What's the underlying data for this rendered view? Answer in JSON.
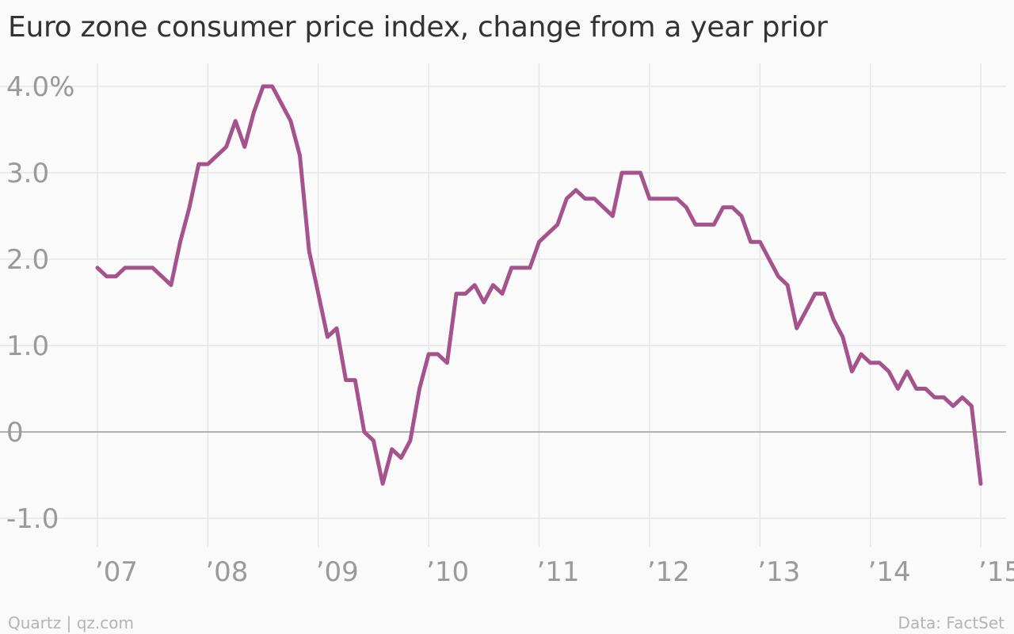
{
  "title": "Euro zone consumer price index, change from a year prior",
  "footer": {
    "source_left": "Quartz | qz.com",
    "source_right": "Data: FactSet"
  },
  "colors": {
    "line": "#a5538c",
    "grid": "#e6e6e6",
    "zero": "#999999",
    "tick_text": "#9a9a9a",
    "background": "#fafafa"
  },
  "chart_data": {
    "type": "line",
    "title": "Euro zone consumer price index, change from a year prior",
    "xlabel": "",
    "ylabel": "",
    "ylim": [
      -1.2,
      4.2
    ],
    "xlim": [
      2007.0,
      2015.1
    ],
    "grid": true,
    "legend": "none",
    "y_ticks": [
      4.0,
      3.0,
      2.0,
      1.0,
      0,
      -1.0
    ],
    "y_tick_labels": [
      "4.0%",
      "3.0",
      "2.0",
      "1.0",
      "0",
      "-1.0"
    ],
    "x_ticks": [
      2007,
      2008,
      2009,
      2010,
      2011,
      2012,
      2013,
      2014,
      2015
    ],
    "x_tick_labels": [
      "’07",
      "’08",
      "’09",
      "’10",
      "’11",
      "’12",
      "’13",
      "’14",
      "’15"
    ],
    "series": [
      {
        "x": [
          "2007-01",
          "2007-02",
          "2007-03",
          "2007-04",
          "2007-05",
          "2007-06",
          "2007-07",
          "2007-08",
          "2007-09",
          "2007-10",
          "2007-11",
          "2007-12",
          "2008-01",
          "2008-02",
          "2008-03",
          "2008-04",
          "2008-05",
          "2008-06",
          "2008-07",
          "2008-08",
          "2008-09",
          "2008-10",
          "2008-11",
          "2008-12",
          "2009-01",
          "2009-02",
          "2009-03",
          "2009-04",
          "2009-05",
          "2009-06",
          "2009-07",
          "2009-08",
          "2009-09",
          "2009-10",
          "2009-11",
          "2009-12",
          "2010-01",
          "2010-02",
          "2010-03",
          "2010-04",
          "2010-05",
          "2010-06",
          "2010-07",
          "2010-08",
          "2010-09",
          "2010-10",
          "2010-11",
          "2010-12",
          "2011-01",
          "2011-02",
          "2011-03",
          "2011-04",
          "2011-05",
          "2011-06",
          "2011-07",
          "2011-08",
          "2011-09",
          "2011-10",
          "2011-11",
          "2011-12",
          "2012-01",
          "2012-02",
          "2012-03",
          "2012-04",
          "2012-05",
          "2012-06",
          "2012-07",
          "2012-08",
          "2012-09",
          "2012-10",
          "2012-11",
          "2012-12",
          "2013-01",
          "2013-02",
          "2013-03",
          "2013-04",
          "2013-05",
          "2013-06",
          "2013-07",
          "2013-08",
          "2013-09",
          "2013-10",
          "2013-11",
          "2013-12",
          "2014-01",
          "2014-02",
          "2014-03",
          "2014-04",
          "2014-05",
          "2014-06",
          "2014-07",
          "2014-08",
          "2014-09",
          "2014-10",
          "2014-11",
          "2014-12",
          "2015-01"
        ],
        "values": [
          1.9,
          1.8,
          1.8,
          1.9,
          1.9,
          1.9,
          1.9,
          1.8,
          1.7,
          2.2,
          2.6,
          3.1,
          3.1,
          3.2,
          3.3,
          3.6,
          3.3,
          3.7,
          4.0,
          4.0,
          3.8,
          3.6,
          3.2,
          2.1,
          1.6,
          1.1,
          1.2,
          0.6,
          0.6,
          0.0,
          -0.1,
          -0.6,
          -0.2,
          -0.3,
          -0.1,
          0.5,
          0.9,
          0.9,
          0.8,
          1.6,
          1.6,
          1.7,
          1.5,
          1.7,
          1.6,
          1.9,
          1.9,
          1.9,
          2.2,
          2.3,
          2.4,
          2.7,
          2.8,
          2.7,
          2.7,
          2.6,
          2.5,
          3.0,
          3.0,
          3.0,
          2.7,
          2.7,
          2.7,
          2.7,
          2.6,
          2.4,
          2.4,
          2.4,
          2.6,
          2.6,
          2.5,
          2.2,
          2.2,
          2.0,
          1.8,
          1.7,
          1.2,
          1.4,
          1.6,
          1.6,
          1.3,
          1.1,
          0.7,
          0.9,
          0.8,
          0.8,
          0.7,
          0.5,
          0.7,
          0.5,
          0.5,
          0.4,
          0.4,
          0.3,
          0.4,
          0.3,
          -0.6
        ]
      }
    ]
  }
}
